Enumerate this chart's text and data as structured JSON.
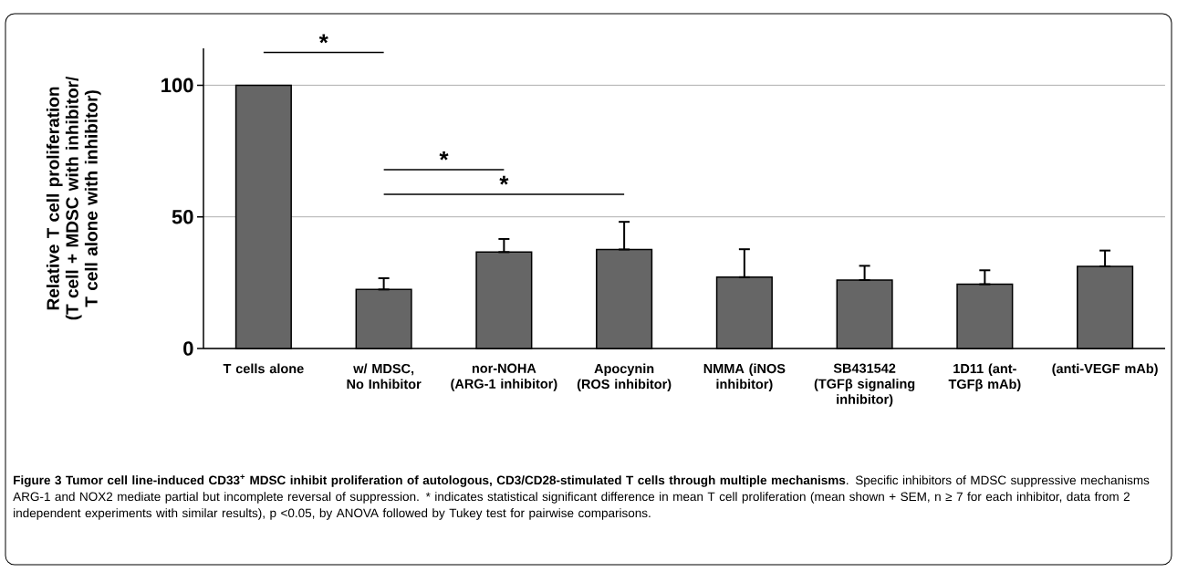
{
  "chart_data": {
    "type": "bar",
    "ylabel": "Relative T cell proliferation (T cell + MDSC with inhibitor/ T cell alone with inhibitor)",
    "categories": [
      "T cells alone",
      "w/ MDSC, No Inhibitor",
      "nor-NOHA (ARG-1 inhibitor)",
      "Apocynin (ROS inhibitor)",
      "NMMA (iNOS inhibitor)",
      "SB431542 (TGFβ signaling inhibitor)",
      "1D11 (ant-TGFβ mAb)",
      "(anti-VEGF mAb)"
    ],
    "values": [
      100,
      22.4,
      36.6,
      37.6,
      27.1,
      26.0,
      24.4,
      31.2
    ],
    "errors": [
      null,
      [
        22.4,
        26.7
      ],
      [
        36.6,
        41.6
      ],
      [
        37.6,
        48.1
      ],
      [
        27.1,
        37.7
      ],
      [
        26.0,
        31.4
      ],
      [
        24.4,
        29.7
      ],
      [
        31.2,
        37.2
      ]
    ],
    "color": "#666666",
    "ylim": [
      0,
      114
    ],
    "yticks": [
      0,
      50,
      100
    ],
    "grid": "y",
    "annotations": [
      "*",
      "*",
      "*",
      "**Figure 3 Tumor cell line-induced CD33$^{+}$ MDSC inhibit proliferation of autologous, CD3/CD28-stimulated T cells through multiple mechanisms**. Specific inhibitors of MDSC suppressive mechanisms ARG-1 and NOX2 mediate partial but incomplete reversal of suppression. * indicates statistical significant difference in mean T cell proliferation (mean shown + SEM, n ≥ 7 for each inhibitor, data from 2 independent experiments with similar results), p <0.05, by ANOVA followed by Tukey test for pairwise comparisons."
    ]
  }
}
